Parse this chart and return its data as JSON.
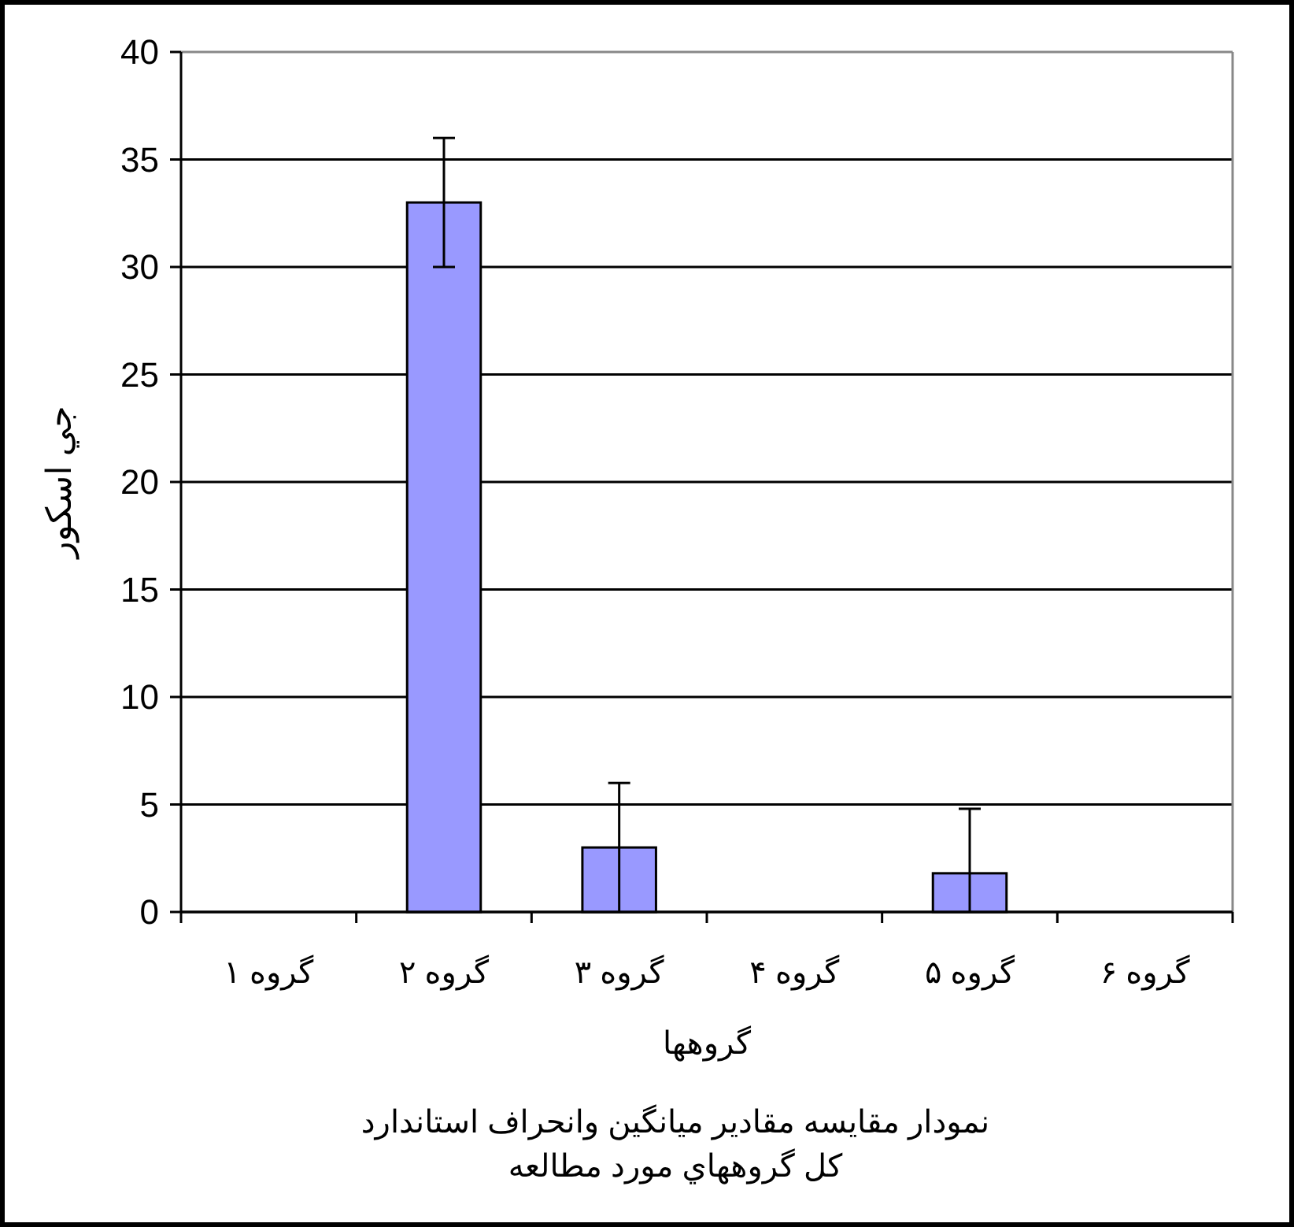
{
  "chart_data": {
    "type": "bar",
    "title": "نمودار مقایسه مقادیر میانگین وانحراف استاندارد",
    "subtitle": "کل گروههاي مورد مطالعه",
    "xlabel": "گروهها",
    "ylabel": "جي اسکور",
    "categories": [
      "گروه ۱",
      "گروه ۲",
      "گروه ۳",
      "گروه ۴",
      "گروه ۵",
      "گروه ۶"
    ],
    "values": [
      0,
      33,
      3,
      0,
      1.8,
      0
    ],
    "errors": [
      null,
      [
        30,
        36
      ],
      [
        0,
        6
      ],
      null,
      [
        0,
        4.8
      ],
      null
    ],
    "color": "#9999ff",
    "ylim": [
      0,
      40
    ],
    "yticks": [
      0,
      5,
      10,
      15,
      20,
      25,
      30,
      35,
      40
    ],
    "grid": "y"
  }
}
